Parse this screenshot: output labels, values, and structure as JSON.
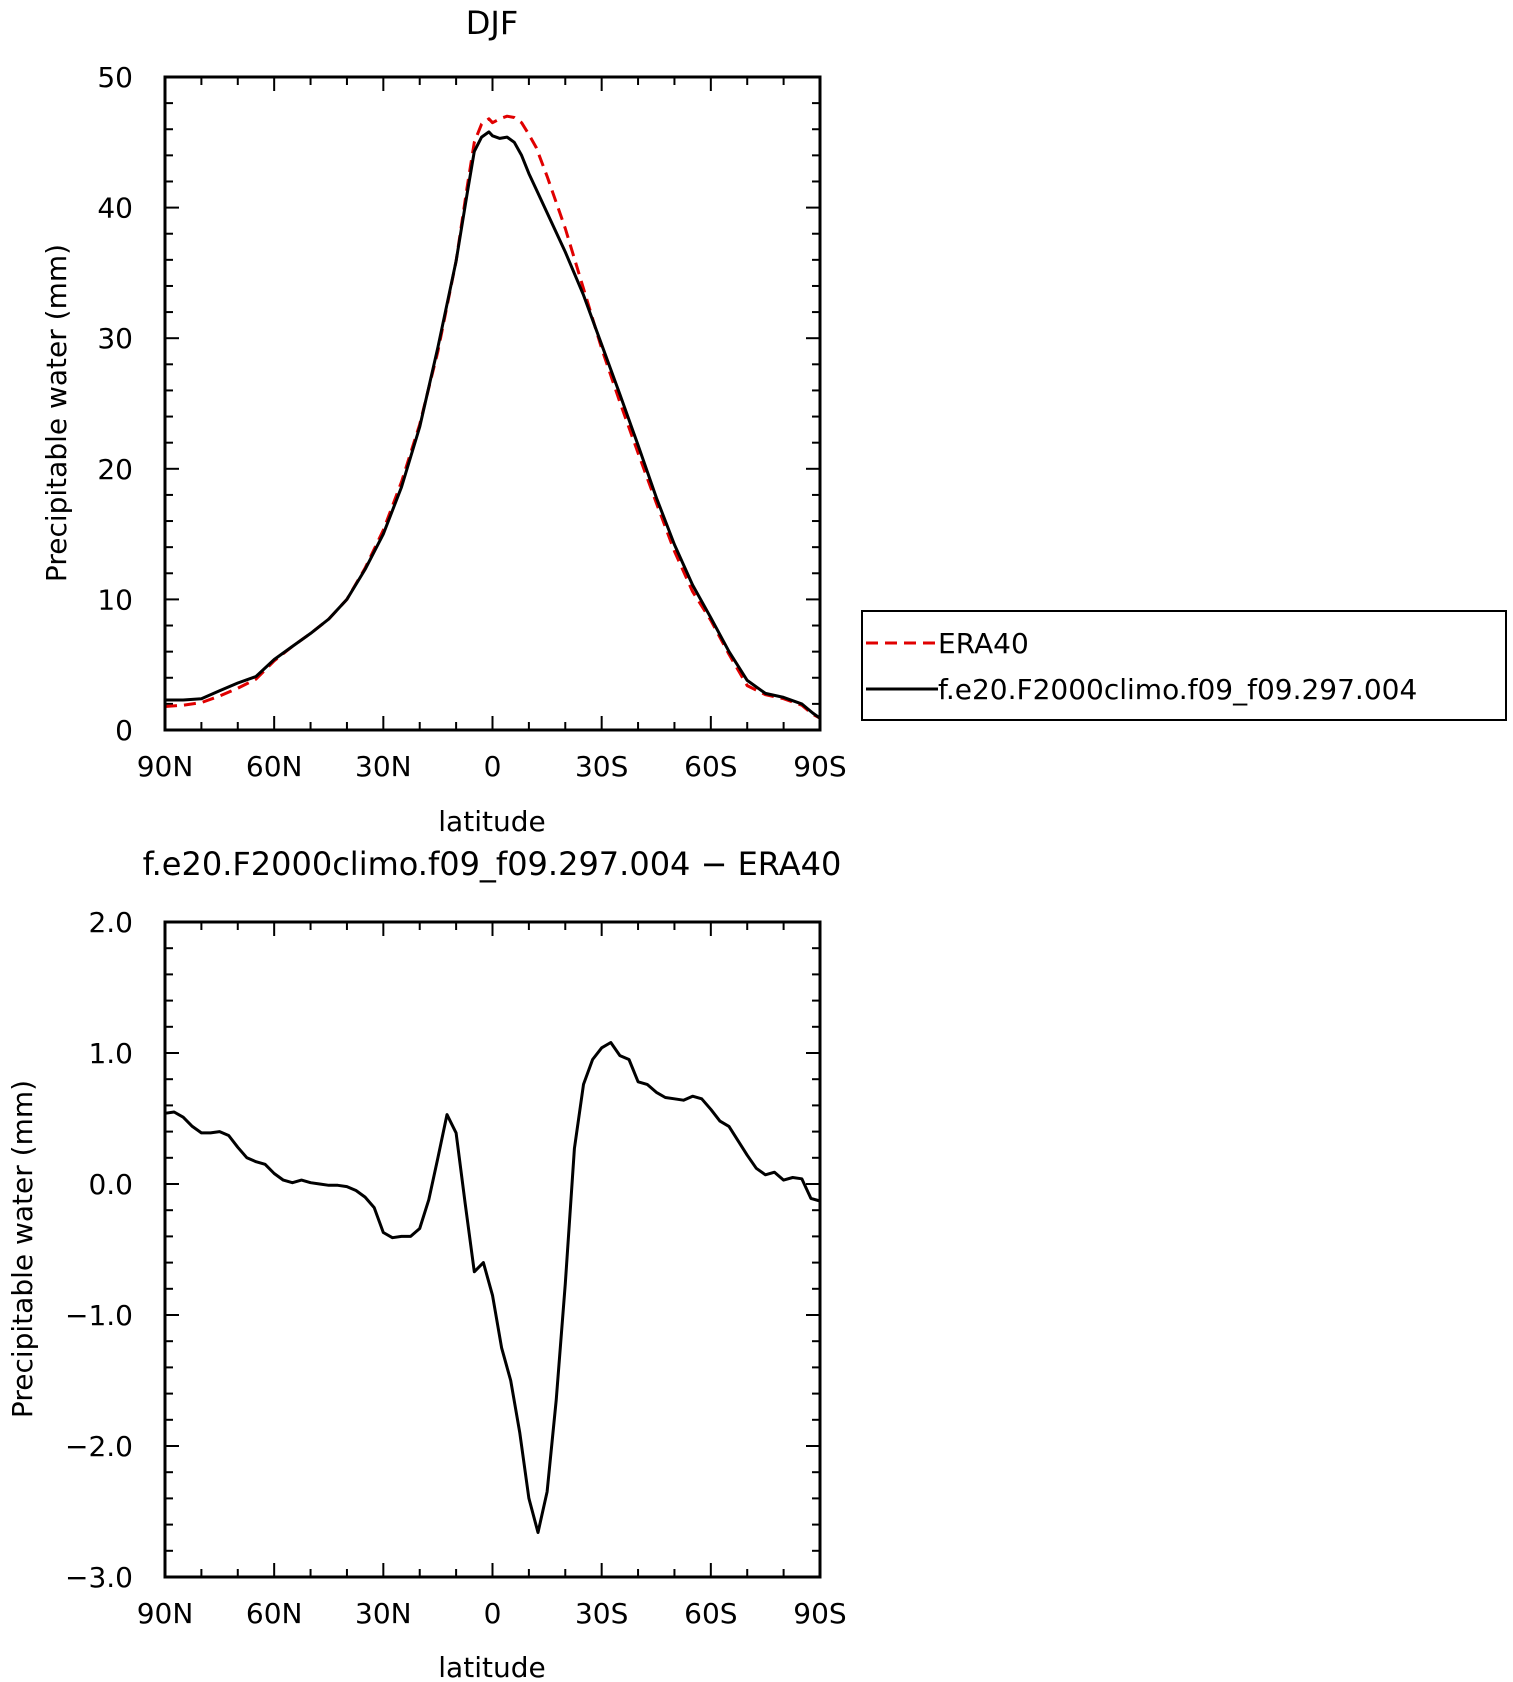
{
  "chart_data": [
    {
      "type": "line",
      "title": "DJF",
      "xlabel": "latitude",
      "ylabel": "Precipitable water (mm)",
      "xlim": [
        90,
        -90
      ],
      "ylim": [
        0,
        50
      ],
      "x_ticks": [
        90,
        60,
        30,
        0,
        -30,
        -60,
        -90
      ],
      "x_tick_labels": [
        "90N",
        "60N",
        "30N",
        "0",
        "30S",
        "60S",
        "90S"
      ],
      "y_ticks": [
        0,
        10,
        20,
        30,
        40,
        50
      ],
      "y_tick_labels": [
        "0",
        "10",
        "20",
        "30",
        "40",
        "50"
      ],
      "legend": "outside-right",
      "series": [
        {
          "name": "ERA40",
          "color": "#e00000",
          "dash": "dashed",
          "x": [
            90,
            85,
            80,
            75,
            70,
            65,
            60,
            55,
            50,
            45,
            40,
            35,
            30,
            25,
            20,
            15,
            10,
            7,
            5,
            3,
            1,
            0,
            -2,
            -4,
            -6,
            -8,
            -10,
            -12,
            -15,
            -20,
            -25,
            -30,
            -35,
            -40,
            -45,
            -50,
            -55,
            -60,
            -65,
            -70,
            -75,
            -80,
            -85,
            -88,
            -90
          ],
          "y": [
            1.8,
            1.9,
            2.1,
            2.6,
            3.2,
            3.9,
            5.3,
            6.4,
            7.4,
            8.5,
            10.0,
            12.4,
            15.3,
            19.0,
            23.4,
            29.0,
            35.9,
            41.5,
            45.0,
            46.4,
            46.8,
            46.5,
            46.8,
            47.0,
            46.9,
            46.5,
            45.6,
            44.6,
            42.4,
            38.4,
            33.8,
            29.2,
            25.1,
            21.2,
            17.4,
            13.7,
            10.6,
            8.4,
            5.8,
            3.4,
            2.7,
            2.4,
            1.9,
            1.2,
            0.9
          ]
        },
        {
          "name": "f.e20.F2000climo.f09_f09.297.004",
          "color": "#000000",
          "dash": "solid",
          "x": [
            90,
            85,
            80,
            75,
            70,
            65,
            60,
            55,
            50,
            45,
            40,
            35,
            30,
            25,
            20,
            15,
            10,
            7,
            5,
            3,
            1,
            0,
            -2,
            -4,
            -6,
            -8,
            -10,
            -12,
            -15,
            -20,
            -25,
            -30,
            -35,
            -40,
            -45,
            -50,
            -55,
            -60,
            -65,
            -70,
            -75,
            -80,
            -85,
            -88,
            -90
          ],
          "y": [
            2.3,
            2.3,
            2.4,
            3.0,
            3.6,
            4.1,
            5.4,
            6.4,
            7.4,
            8.5,
            10.0,
            12.3,
            15.0,
            18.6,
            23.2,
            29.3,
            35.9,
            41.0,
            44.3,
            45.4,
            45.8,
            45.5,
            45.3,
            45.4,
            45.0,
            44.0,
            42.6,
            41.4,
            39.6,
            36.6,
            33.3,
            29.5,
            25.7,
            21.8,
            17.8,
            14.2,
            11.1,
            8.6,
            6.0,
            3.8,
            2.8,
            2.5,
            2.0,
            1.3,
            0.9
          ]
        }
      ]
    },
    {
      "type": "line",
      "title": "f.e20.F2000climo.f09_f09.297.004 − ERA40",
      "xlabel": "latitude",
      "ylabel": "Precipitable water (mm)",
      "xlim": [
        90,
        -90
      ],
      "ylim": [
        -3.0,
        2.0
      ],
      "x_ticks": [
        90,
        60,
        30,
        0,
        -30,
        -60,
        -90
      ],
      "x_tick_labels": [
        "90N",
        "60N",
        "30N",
        "0",
        "30S",
        "60S",
        "90S"
      ],
      "y_ticks": [
        2.0,
        1.0,
        0.0,
        -1.0,
        -2.0,
        -3.0
      ],
      "y_tick_labels": [
        "2.0",
        "1.0",
        "0.0",
        "−1.0",
        "−2.0",
        "−3.0"
      ],
      "series": [
        {
          "color": "#000000",
          "dash": "solid",
          "x": [
            90,
            87.5,
            85,
            82.5,
            80,
            77.5,
            75,
            72.5,
            70,
            67.5,
            65,
            62.5,
            60,
            57.5,
            55,
            52.5,
            50,
            47.5,
            45,
            42.5,
            40,
            37.5,
            35,
            32.5,
            30,
            27.5,
            25,
            22.5,
            20,
            17.5,
            15,
            12.5,
            10,
            7.5,
            5,
            2.5,
            0,
            -2.5,
            -5,
            -7.5,
            -10,
            -12.5,
            -15,
            -17.5,
            -20,
            -22.5,
            -25,
            -27.5,
            -30,
            -32.5,
            -35,
            -37.5,
            -40,
            -42.5,
            -45,
            -47.5,
            -50,
            -52.5,
            -55,
            -57.5,
            -60,
            -62.5,
            -65,
            -67.5,
            -70,
            -72.5,
            -75,
            -77.5,
            -80,
            -82.5,
            -85,
            -87.5,
            -90
          ],
          "y": [
            0.54,
            0.55,
            0.51,
            0.44,
            0.39,
            0.39,
            0.4,
            0.37,
            0.28,
            0.2,
            0.17,
            0.15,
            0.08,
            0.03,
            0.01,
            0.03,
            0.01,
            0.0,
            -0.01,
            -0.01,
            -0.02,
            -0.05,
            -0.1,
            -0.18,
            -0.37,
            -0.41,
            -0.4,
            -0.4,
            -0.34,
            -0.12,
            0.2,
            0.53,
            0.39,
            -0.15,
            -0.67,
            -0.6,
            -0.85,
            -1.25,
            -1.5,
            -1.9,
            -2.4,
            -2.66,
            -2.35,
            -1.65,
            -0.76,
            0.27,
            0.76,
            0.95,
            1.04,
            1.08,
            0.98,
            0.95,
            0.78,
            0.76,
            0.7,
            0.66,
            0.65,
            0.64,
            0.67,
            0.65,
            0.57,
            0.48,
            0.44,
            0.33,
            0.22,
            0.12,
            0.07,
            0.09,
            0.03,
            0.05,
            0.04,
            -0.11,
            -0.13
          ]
        }
      ]
    }
  ]
}
